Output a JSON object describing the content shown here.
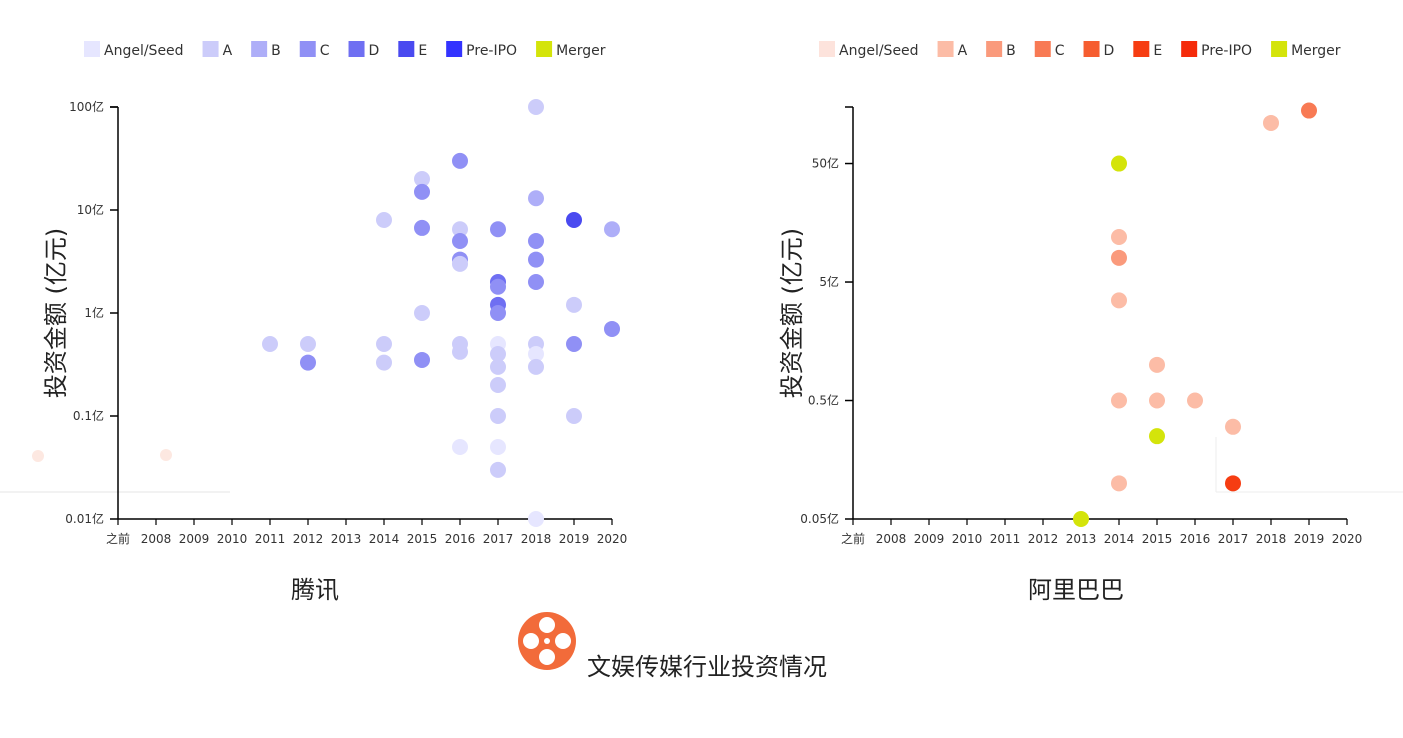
{
  "footer": {
    "title": "文娱传媒行业投资情况",
    "logo_color": "#f26b3a"
  },
  "charts_meta": {
    "left_colors": [
      "#e6e6ff",
      "#ccccfa",
      "#aeaef8",
      "#9090f5",
      "#6f6ff2",
      "#4a4af0",
      "#3333ff",
      "#d4e40a"
    ],
    "right_colors": [
      "#fde3dc",
      "#fcbca6",
      "#fa9a7c",
      "#f87a54",
      "#f65d30",
      "#f63d12",
      "#f52b0a",
      "#d4e40a"
    ]
  },
  "chart_data": [
    {
      "type": "scatter",
      "title": "腾讯",
      "ylabel": "投资金额 (亿元)",
      "xlabel": "",
      "y_scale": "log",
      "ylim": [
        0.01,
        100
      ],
      "y_ticks": [
        {
          "value": 0.01,
          "label": "0.01亿"
        },
        {
          "value": 0.1,
          "label": "0.1亿"
        },
        {
          "value": 1,
          "label": "1亿"
        },
        {
          "value": 10,
          "label": "10亿"
        },
        {
          "value": 100,
          "label": "100亿"
        }
      ],
      "categories": [
        "之前",
        "2008",
        "2009",
        "2010",
        "2011",
        "2012",
        "2013",
        "2014",
        "2015",
        "2016",
        "2017",
        "2018",
        "2019",
        "2020"
      ],
      "legend": [
        "Angel/Seed",
        "A",
        "B",
        "C",
        "D",
        "E",
        "Pre-IPO",
        "Merger"
      ],
      "points": [
        {
          "x": "2011",
          "y": 0.5,
          "round": "A"
        },
        {
          "x": "2012",
          "y": 0.5,
          "round": "A"
        },
        {
          "x": "2012",
          "y": 0.33,
          "round": "C"
        },
        {
          "x": "2014",
          "y": 8,
          "round": "A"
        },
        {
          "x": "2014",
          "y": 0.5,
          "round": "A"
        },
        {
          "x": "2014",
          "y": 0.33,
          "round": "A"
        },
        {
          "x": "2015",
          "y": 20,
          "round": "A"
        },
        {
          "x": "2015",
          "y": 15,
          "round": "C"
        },
        {
          "x": "2015",
          "y": 6.7,
          "round": "C"
        },
        {
          "x": "2015",
          "y": 1,
          "round": "A"
        },
        {
          "x": "2015",
          "y": 0.35,
          "round": "C"
        },
        {
          "x": "2016",
          "y": 30,
          "round": "C"
        },
        {
          "x": "2016",
          "y": 6.5,
          "round": "A"
        },
        {
          "x": "2016",
          "y": 5,
          "round": "C"
        },
        {
          "x": "2016",
          "y": 3.3,
          "round": "C"
        },
        {
          "x": "2016",
          "y": 3,
          "round": "A"
        },
        {
          "x": "2016",
          "y": 0.5,
          "round": "A"
        },
        {
          "x": "2016",
          "y": 0.42,
          "round": "A"
        },
        {
          "x": "2016",
          "y": 0.05,
          "round": "Angel/Seed"
        },
        {
          "x": "2017",
          "y": 6.5,
          "round": "C"
        },
        {
          "x": "2017",
          "y": 2,
          "round": "D"
        },
        {
          "x": "2017",
          "y": 1.8,
          "round": "C"
        },
        {
          "x": "2017",
          "y": 1.2,
          "round": "D"
        },
        {
          "x": "2017",
          "y": 1,
          "round": "C"
        },
        {
          "x": "2017",
          "y": 0.5,
          "round": "Angel/Seed"
        },
        {
          "x": "2017",
          "y": 0.4,
          "round": "A"
        },
        {
          "x": "2017",
          "y": 0.3,
          "round": "A"
        },
        {
          "x": "2017",
          "y": 0.2,
          "round": "A"
        },
        {
          "x": "2017",
          "y": 0.1,
          "round": "A"
        },
        {
          "x": "2017",
          "y": 0.05,
          "round": "Angel/Seed"
        },
        {
          "x": "2017",
          "y": 0.03,
          "round": "A"
        },
        {
          "x": "2018",
          "y": 100,
          "round": "A"
        },
        {
          "x": "2018",
          "y": 13,
          "round": "B"
        },
        {
          "x": "2018",
          "y": 5,
          "round": "C"
        },
        {
          "x": "2018",
          "y": 3.3,
          "round": "C"
        },
        {
          "x": "2018",
          "y": 2,
          "round": "C"
        },
        {
          "x": "2018",
          "y": 0.5,
          "round": "A"
        },
        {
          "x": "2018",
          "y": 0.4,
          "round": "Angel/Seed"
        },
        {
          "x": "2018",
          "y": 0.3,
          "round": "A"
        },
        {
          "x": "2018",
          "y": 0.01,
          "round": "Angel/Seed"
        },
        {
          "x": "2019",
          "y": 8,
          "round": "E"
        },
        {
          "x": "2019",
          "y": 1.2,
          "round": "A"
        },
        {
          "x": "2019",
          "y": 0.5,
          "round": "C"
        },
        {
          "x": "2019",
          "y": 0.1,
          "round": "A"
        },
        {
          "x": "2020",
          "y": 6.5,
          "round": "B"
        },
        {
          "x": "2020",
          "y": 0.7,
          "round": "C"
        }
      ]
    },
    {
      "type": "scatter",
      "title": "阿里巴巴",
      "ylabel": "投资金额 (亿元)",
      "xlabel": "",
      "y_scale": "log",
      "ylim": [
        0.05,
        150
      ],
      "y_ticks": [
        {
          "value": 0.05,
          "label": "0.05亿"
        },
        {
          "value": 0.5,
          "label": "0.5亿"
        },
        {
          "value": 5,
          "label": "5亿"
        },
        {
          "value": 50,
          "label": "50亿"
        }
      ],
      "categories": [
        "之前",
        "2008",
        "2009",
        "2010",
        "2011",
        "2012",
        "2013",
        "2014",
        "2015",
        "2016",
        "2017",
        "2018",
        "2019",
        "2020"
      ],
      "legend": [
        "Angel/Seed",
        "A",
        "B",
        "C",
        "D",
        "E",
        "Pre-IPO",
        "Merger"
      ],
      "points": [
        {
          "x": "2013",
          "y": 0.05,
          "round": "Merger"
        },
        {
          "x": "2014",
          "y": 50,
          "round": "Merger"
        },
        {
          "x": "2014",
          "y": 12,
          "round": "A"
        },
        {
          "x": "2014",
          "y": 8,
          "round": "B"
        },
        {
          "x": "2014",
          "y": 3.5,
          "round": "A"
        },
        {
          "x": "2014",
          "y": 0.5,
          "round": "A"
        },
        {
          "x": "2014",
          "y": 0.1,
          "round": "A"
        },
        {
          "x": "2015",
          "y": 1.0,
          "round": "A"
        },
        {
          "x": "2015",
          "y": 0.5,
          "round": "A"
        },
        {
          "x": "2015",
          "y": 0.25,
          "round": "Merger"
        },
        {
          "x": "2016",
          "y": 0.5,
          "round": "A"
        },
        {
          "x": "2017",
          "y": 0.3,
          "round": "A"
        },
        {
          "x": "2017",
          "y": 0.1,
          "round": "E"
        },
        {
          "x": "2018",
          "y": 110,
          "round": "A"
        },
        {
          "x": "2019",
          "y": 140,
          "round": "C"
        }
      ]
    }
  ]
}
